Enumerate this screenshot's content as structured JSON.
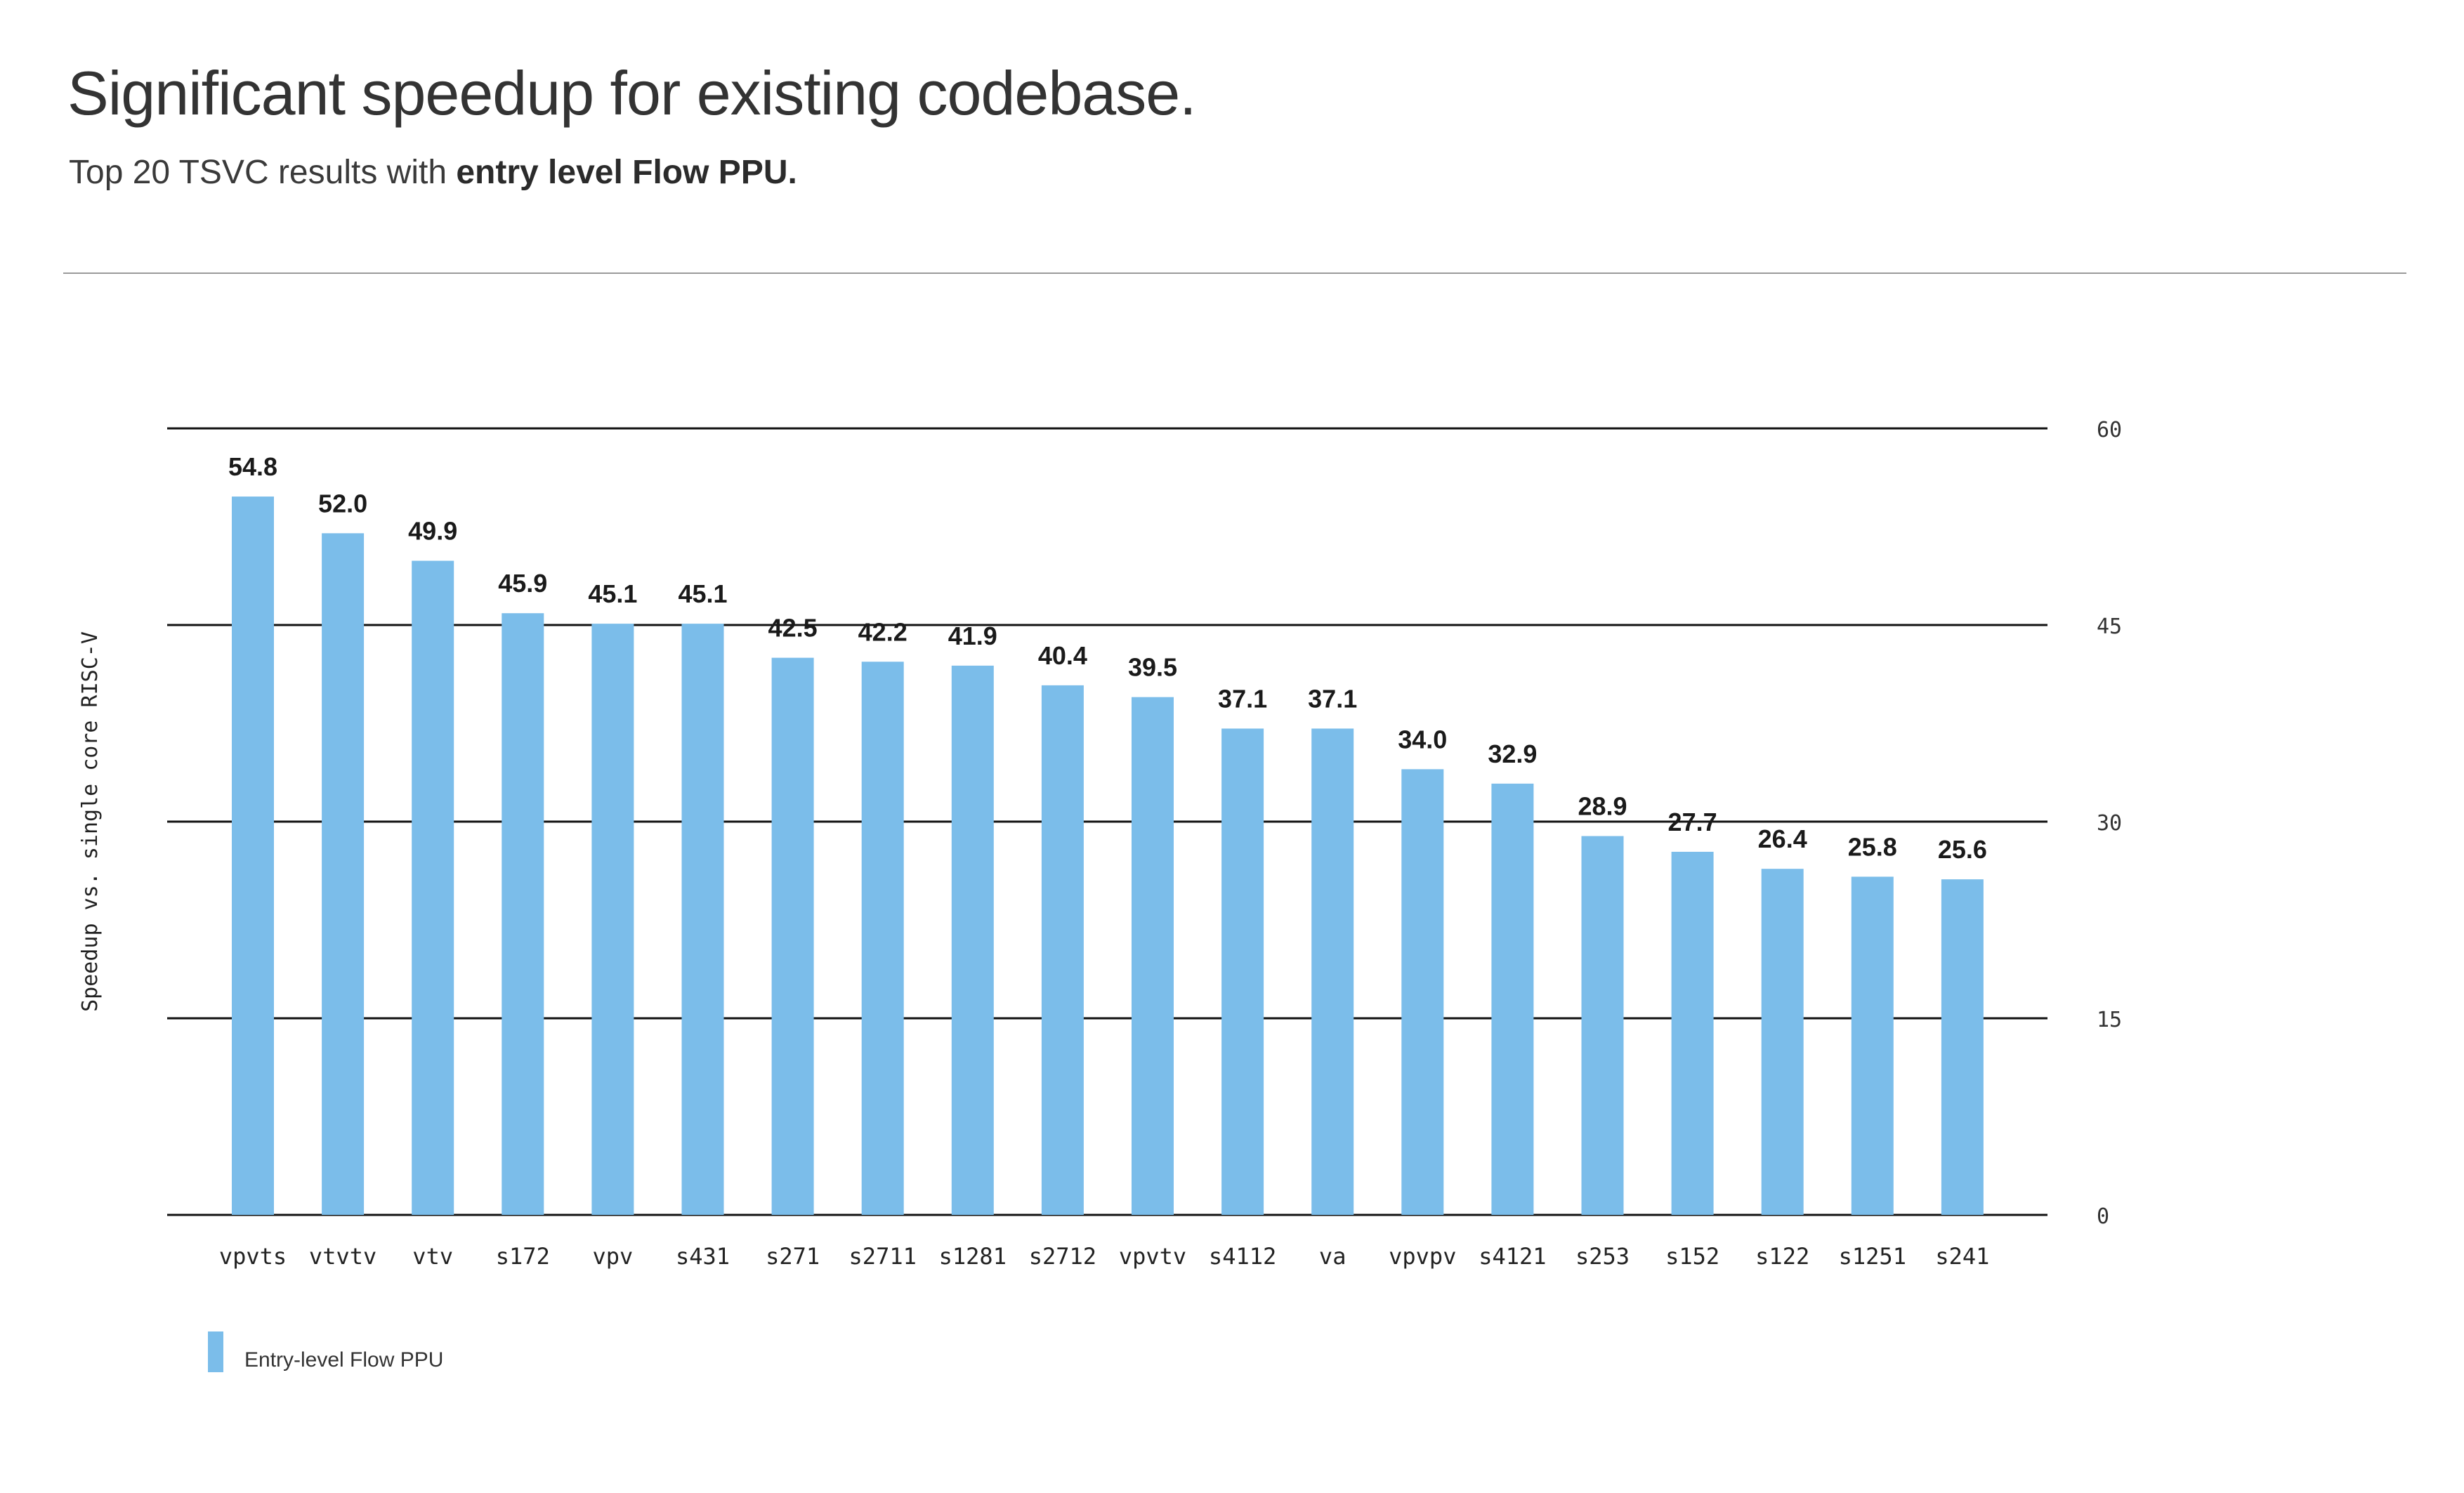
{
  "page": {
    "title": "Significant speedup for existing codebase.",
    "subtitle_prefix": "Top 20 TSVC results with ",
    "subtitle_bold": "entry level  Flow PPU."
  },
  "colors": {
    "bar": "#7bbdea",
    "gridline": "#111111",
    "text": "#2b2b2b"
  },
  "chart_data": {
    "type": "bar",
    "categories": [
      "vpvts",
      "vtvtv",
      "vtv",
      "s172",
      "vpv",
      "s431",
      "s271",
      "s2711",
      "s1281",
      "s2712",
      "vpvtv",
      "s4112",
      "va",
      "vpvpv",
      "s4121",
      "s253",
      "s152",
      "s122",
      "s1251",
      "s241"
    ],
    "series": [
      {
        "name": "Entry-level Flow PPU",
        "values": [
          54.8,
          52.0,
          49.9,
          45.9,
          45.1,
          45.1,
          42.5,
          42.2,
          41.9,
          40.4,
          39.5,
          37.1,
          37.1,
          34.0,
          32.9,
          28.9,
          27.7,
          26.4,
          25.8,
          25.6
        ]
      }
    ],
    "data_labels": [
      "54.8",
      "52.0",
      "49.9",
      "45.9",
      "45.1",
      "45.1",
      "42.5",
      "42.2",
      "41.9",
      "40.4",
      "39.5",
      "37.1",
      "37.1",
      "34.0",
      "32.9",
      "28.9",
      "27.7",
      "26.4",
      "25.8",
      "25.6"
    ],
    "ylabel": "Speedup vs. single core RISC-V",
    "ylim": [
      0,
      60
    ],
    "yticks": [
      0,
      15,
      30,
      45,
      60
    ],
    "ytick_labels": [
      "0",
      "15",
      "30",
      "45",
      "60"
    ],
    "y_axis_side": "right",
    "grid": true,
    "legend_position": "bottom-left"
  }
}
